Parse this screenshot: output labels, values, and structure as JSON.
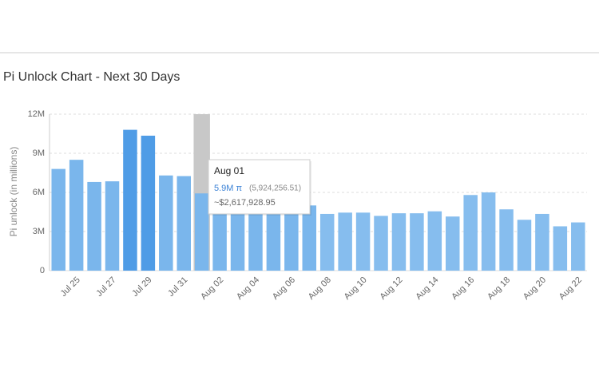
{
  "chart_data": {
    "type": "bar",
    "title": "Pi Unlock Chart - Next 30 Days",
    "y_label": "Pi unlock (in millions)",
    "categories": [
      null,
      "Jul 25",
      null,
      "Jul 27",
      null,
      "Jul 29",
      null,
      "Jul 31",
      null,
      "Aug 02",
      null,
      "Aug 04",
      null,
      "Aug 06",
      null,
      "Aug 08",
      null,
      "Aug 10",
      null,
      "Aug 12",
      null,
      "Aug 14",
      null,
      "Aug 16",
      null,
      "Aug 18",
      null,
      "Aug 20",
      null,
      "Aug 22"
    ],
    "values": [
      7800000,
      8500000,
      6800000,
      6850000,
      10800000,
      10350000,
      7300000,
      7250000,
      5924256.51,
      4500000,
      4500000,
      4500000,
      4550000,
      4550000,
      5000000,
      4350000,
      4450000,
      4450000,
      4200000,
      4400000,
      4400000,
      4550000,
      4150000,
      5800000,
      6000000,
      4700000,
      3900000,
      4350000,
      3400000,
      3700000
    ],
    "colors": [
      "#7ab6ec",
      "#7ab6ec",
      "#7ab6ec",
      "#7ab6ec",
      "#4f9ce6",
      "#4f9ce6",
      "#7ab6ec",
      "#7ab6ec",
      "#7ab6ec",
      "#7ab6ec",
      "#7ab6ec",
      "#7ab6ec",
      "#7ab6ec",
      "#7ab6ec",
      "#7ab6ec",
      "#86bdee",
      "#86bdee",
      "#86bdee",
      "#86bdee",
      "#86bdee",
      "#86bdee",
      "#86bdee",
      "#86bdee",
      "#86bdee",
      "#86bdee",
      "#86bdee",
      "#86bdee",
      "#86bdee",
      "#86bdee",
      "#86bdee"
    ],
    "ylim": [
      0,
      12000000
    ],
    "yticks": [
      0,
      {
        "value": 3000000,
        "label": "3M"
      },
      {
        "value": 6000000,
        "label": "6M"
      },
      {
        "value": 9000000,
        "label": "9M"
      },
      {
        "value": 12000000,
        "label": "12M"
      }
    ],
    "grid": true,
    "hover_index": 8,
    "tooltip": {
      "title": "Aug 01",
      "value_label": "5.9M π",
      "exact": "(5,924,256.51)",
      "usd": "~$2,617,928.95"
    }
  }
}
